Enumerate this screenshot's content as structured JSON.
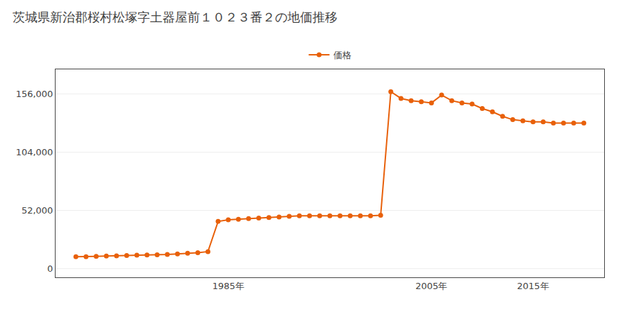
{
  "chart_data": {
    "type": "line",
    "title": "茨城県新治郡桜村松塚字土器屋前１０２３番２の地価推移",
    "x": [
      1970,
      1971,
      1972,
      1973,
      1974,
      1975,
      1976,
      1977,
      1978,
      1979,
      1980,
      1981,
      1982,
      1983,
      1984,
      1985,
      1986,
      1987,
      1988,
      1989,
      1990,
      1991,
      1992,
      1993,
      1994,
      1995,
      1996,
      1997,
      1998,
      1999,
      2000,
      2001,
      2002,
      2003,
      2004,
      2005,
      2006,
      2007,
      2008,
      2009,
      2010,
      2011,
      2012,
      2013,
      2014,
      2015,
      2016,
      2017,
      2018,
      2019,
      2020
    ],
    "series": [
      {
        "name": "価格",
        "color": "#e8600a",
        "marker": "circle",
        "values": [
          10500,
          10500,
          10800,
          11000,
          11200,
          11500,
          11800,
          12000,
          12200,
          12500,
          13000,
          13500,
          14000,
          15000,
          42000,
          43500,
          44000,
          44500,
          45000,
          45500,
          46000,
          46500,
          47000,
          47000,
          47000,
          47000,
          47000,
          47000,
          47000,
          47000,
          47500,
          158000,
          152000,
          150000,
          149000,
          148000,
          155000,
          150000,
          148000,
          147000,
          143000,
          140000,
          136000,
          133000,
          132000,
          131000,
          131000,
          130000,
          130000,
          130000,
          130000
        ]
      }
    ],
    "xlim": [
      1968,
      2022
    ],
    "xticks": [
      {
        "value": 1985,
        "label": "1985年"
      },
      {
        "value": 2005,
        "label": "2005年"
      },
      {
        "value": 2015,
        "label": "2015年"
      }
    ],
    "ylim": [
      -8000,
      178000
    ],
    "yticks": [
      0,
      {
        "value": 52000,
        "label": "52,000"
      },
      {
        "value": 104000,
        "label": "104,000"
      },
      {
        "value": 156000,
        "label": "156,000"
      }
    ],
    "grid": "y",
    "legend": "top"
  }
}
